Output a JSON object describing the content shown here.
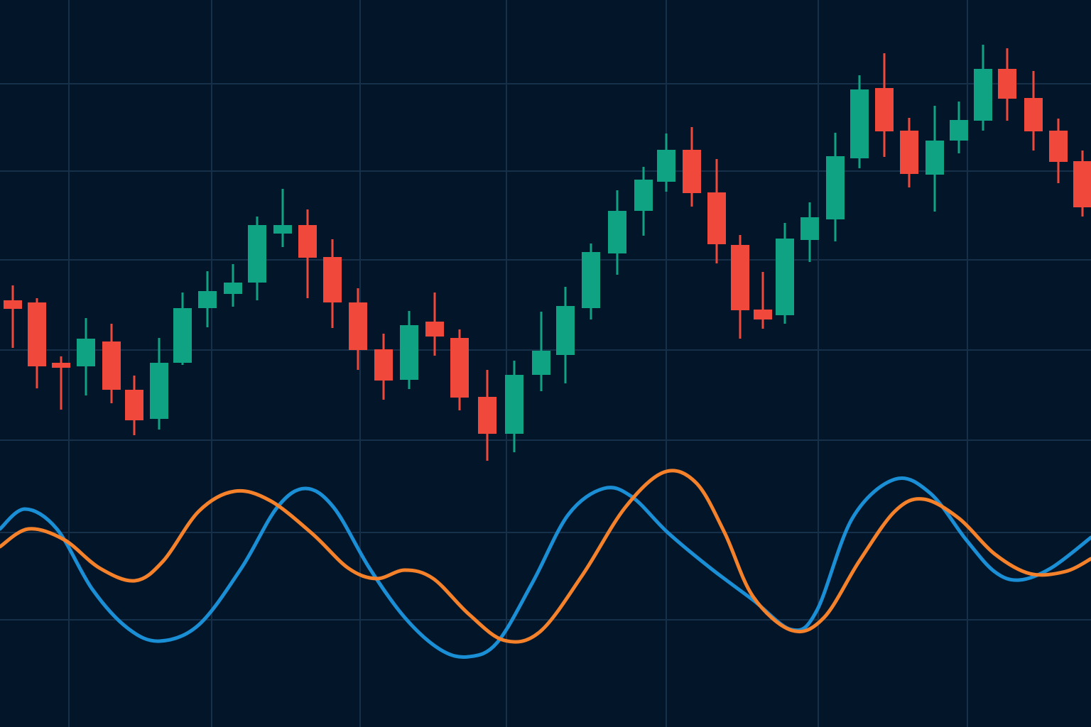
{
  "chart_data": [
    {
      "type": "candlestick",
      "x": [
        18,
        52,
        86,
        121,
        157,
        189,
        224,
        257,
        292,
        328,
        362,
        398,
        433,
        468,
        504,
        540,
        576,
        612,
        647,
        686,
        724,
        762,
        796,
        832,
        869,
        906,
        938,
        974,
        1009,
        1042,
        1074,
        1105,
        1140,
        1176,
        1210,
        1245,
        1280,
        1316,
        1350,
        1384,
        1418,
        1455,
        1490,
        1524
      ],
      "open": [
        601,
        598,
        513,
        508,
        543,
        475,
        434,
        513,
        590,
        610,
        626,
        695,
        707,
        662,
        598,
        532,
        489,
        571,
        548,
        465,
        413,
        496,
        524,
        590,
        667,
        727,
        768,
        813,
        753,
        679,
        588,
        580,
        686,
        715,
        801,
        900,
        840,
        778,
        826,
        854,
        927,
        886,
        840,
        797
      ],
      "high": [
        622,
        604,
        522,
        576,
        568,
        495,
        548,
        612,
        642,
        652,
        719,
        758,
        729,
        687,
        618,
        554,
        586,
        612,
        560,
        503,
        516,
        585,
        620,
        681,
        756,
        789,
        836,
        845,
        800,
        693,
        641,
        710,
        739,
        837,
        918,
        949,
        858,
        875,
        881,
        961,
        956,
        924,
        857,
        812
      ],
      "low": [
        534,
        477,
        447,
        467,
        456,
        411,
        419,
        510,
        563,
        592,
        601,
        676,
        604,
        562,
        503,
        461,
        476,
        523,
        446,
        375,
        387,
        473,
        484,
        574,
        637,
        692,
        754,
        733,
        653,
        547,
        561,
        568,
        655,
        684,
        787,
        803,
        760,
        726,
        808,
        840,
        854,
        812,
        766,
        719
      ],
      "close": [
        589,
        508,
        506,
        547,
        475,
        432,
        513,
        590,
        614,
        626,
        707,
        707,
        661,
        598,
        531,
        488,
        566,
        550,
        464,
        413,
        496,
        530,
        593,
        669,
        727,
        771,
        813,
        752,
        680,
        587,
        574,
        688,
        718,
        804,
        898,
        839,
        779,
        826,
        855,
        927,
        885,
        839,
        796,
        732
      ],
      "up_color": "#0fa383",
      "down_color": "#f0483a",
      "xlim": [
        0,
        1536
      ],
      "ylim": [
        0,
        1024
      ],
      "xticks": [
        97,
        298,
        507,
        713,
        938,
        1152,
        1362
      ],
      "yticks": [
        151,
        274,
        404,
        531,
        658,
        783,
        906
      ],
      "grid": true
    },
    {
      "type": "line",
      "xlim": [
        0,
        1536
      ],
      "ylim": [
        0,
        1024
      ],
      "series": [
        {
          "color": "#1a8fd6",
          "x": [
            0,
            35,
            80,
            130,
            180,
            225,
            280,
            340,
            390,
            430,
            470,
            520,
            570,
            620,
            660,
            700,
            750,
            800,
            850,
            890,
            940,
            1000,
            1060,
            1115,
            1150,
            1200,
            1260,
            1310,
            1360,
            1400,
            1435,
            1480,
            1536
          ],
          "values": [
            279,
            307,
            279,
            194,
            139,
            121,
            144,
            224,
            309,
            336,
            309,
            224,
            154,
            109,
            99,
            119,
            204,
            299,
            336,
            324,
            274,
            224,
            179,
            137,
            164,
            294,
            349,
            329,
            264,
            219,
            207,
            224,
            267
          ]
        },
        {
          "color": "#f5812a",
          "x": [
            0,
            40,
            90,
            140,
            190,
            230,
            280,
            330,
            380,
            440,
            490,
            530,
            570,
            610,
            660,
            710,
            760,
            820,
            880,
            935,
            980,
            1020,
            1060,
            1115,
            1160,
            1210,
            1260,
            1300,
            1350,
            1400,
            1450,
            1500,
            1536
          ],
          "values": [
            254,
            279,
            264,
            224,
            206,
            234,
            304,
            332,
            319,
            272,
            224,
            209,
            221,
            209,
            159,
            122,
            134,
            214,
            309,
            359,
            344,
            274,
            184,
            136,
            154,
            234,
            304,
            321,
            294,
            244,
            216,
            219,
            237
          ]
        }
      ]
    }
  ]
}
